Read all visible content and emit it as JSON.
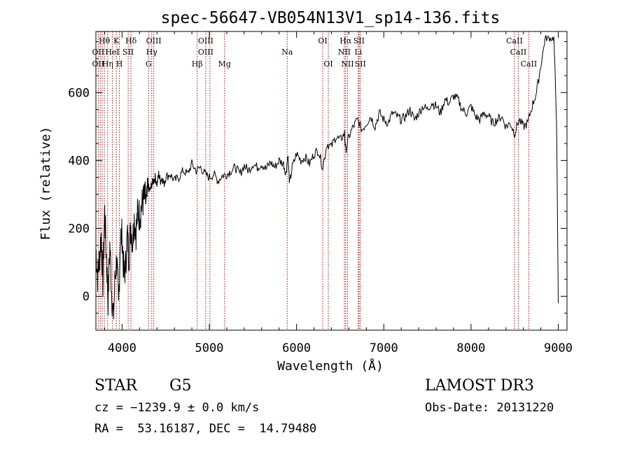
{
  "chart_data": {
    "type": "line",
    "title": "spec-56647-VB054N13V1_sp14-136.fits",
    "xlabel": "Wavelength (Å)",
    "ylabel": "Flux (relative)",
    "xlim": [
      3700,
      9100
    ],
    "ylim": [
      -100,
      780
    ],
    "xticks": [
      4000,
      5000,
      6000,
      7000,
      8000,
      9000
    ],
    "xtick_labels": [
      "4000",
      "5000",
      "6000",
      "7000",
      "8000",
      "9000"
    ],
    "yticks": [
      0,
      200,
      400,
      600
    ],
    "ytick_labels": [
      "0",
      "200",
      "400",
      "600"
    ],
    "grid": false,
    "series": [
      {
        "name": "flux",
        "x": [
          3700,
          3720,
          3740,
          3760,
          3780,
          3800,
          3820,
          3840,
          3860,
          3880,
          3900,
          3920,
          3940,
          3960,
          3980,
          4000,
          4020,
          4040,
          4060,
          4080,
          4100,
          4120,
          4140,
          4160,
          4180,
          4200,
          4220,
          4240,
          4260,
          4280,
          4300,
          4320,
          4340,
          4360,
          4380,
          4400,
          4420,
          4440,
          4460,
          4480,
          4500,
          4550,
          4600,
          4650,
          4700,
          4750,
          4800,
          4850,
          4900,
          4950,
          5000,
          5050,
          5100,
          5150,
          5200,
          5250,
          5300,
          5350,
          5400,
          5450,
          5500,
          5550,
          5600,
          5650,
          5700,
          5750,
          5800,
          5850,
          5880,
          5900,
          5920,
          5950,
          6000,
          6050,
          6100,
          6150,
          6200,
          6250,
          6300,
          6350,
          6400,
          6450,
          6500,
          6550,
          6563,
          6600,
          6650,
          6700,
          6750,
          6800,
          6850,
          6900,
          6950,
          7000,
          7050,
          7100,
          7150,
          7200,
          7250,
          7300,
          7350,
          7400,
          7450,
          7500,
          7550,
          7600,
          7650,
          7700,
          7750,
          7800,
          7850,
          7900,
          7950,
          8000,
          8050,
          8100,
          8150,
          8200,
          8250,
          8300,
          8350,
          8400,
          8450,
          8500,
          8550,
          8600,
          8650,
          8700,
          8750,
          8800,
          8850,
          8900,
          8950,
          8980,
          9000
        ],
        "values": [
          140,
          60,
          110,
          180,
          40,
          250,
          120,
          -10,
          150,
          20,
          -70,
          60,
          110,
          -40,
          170,
          180,
          60,
          90,
          180,
          120,
          210,
          160,
          230,
          190,
          250,
          240,
          260,
          280,
          290,
          270,
          320,
          310,
          330,
          340,
          350,
          330,
          360,
          340,
          350,
          330,
          350,
          360,
          340,
          350,
          370,
          360,
          390,
          370,
          380,
          360,
          350,
          360,
          340,
          355,
          360,
          370,
          380,
          360,
          385,
          370,
          390,
          380,
          390,
          375,
          395,
          380,
          400,
          390,
          360,
          420,
          330,
          380,
          420,
          400,
          410,
          390,
          420,
          430,
          380,
          450,
          440,
          470,
          460,
          480,
          430,
          470,
          500,
          520,
          490,
          510,
          530,
          500,
          540,
          520,
          510,
          540,
          530,
          520,
          530,
          550,
          520,
          540,
          560,
          550,
          570,
          560,
          540,
          580,
          570,
          590,
          580,
          550,
          540,
          560,
          530,
          520,
          540,
          530,
          510,
          520,
          530,
          500,
          510,
          480,
          520,
          500,
          510,
          560,
          600,
          680,
          760,
          760,
          760,
          520,
          -20
        ]
      }
    ],
    "line_identifications": [
      {
        "label": "Hθ",
        "x": 3797,
        "row": 1
      },
      {
        "label": "OII",
        "x": 3727,
        "row": 2
      },
      {
        "label": "OII",
        "x": 3727,
        "row": 3
      },
      {
        "label": "K",
        "x": 3934,
        "row": 1
      },
      {
        "label": "HeI",
        "x": 3889,
        "row": 2
      },
      {
        "label": "Hη",
        "x": 3835,
        "row": 3
      },
      {
        "label": "Hδ",
        "x": 4102,
        "row": 1
      },
      {
        "label": "SII",
        "x": 4070,
        "row": 2
      },
      {
        "label": "H",
        "x": 3969,
        "row": 3
      },
      {
        "label": "OIII",
        "x": 4363,
        "row": 1
      },
      {
        "label": "Hγ",
        "x": 4340,
        "row": 2
      },
      {
        "label": "G",
        "x": 4304,
        "row": 3
      },
      {
        "label": "OIII",
        "x": 4959,
        "row": 1
      },
      {
        "label": "OIII",
        "x": 4959,
        "row": 2
      },
      {
        "label": "Hβ",
        "x": 4861,
        "row": 3
      },
      {
        "label": "Mg",
        "x": 5175,
        "row": 3
      },
      {
        "label": "Na",
        "x": 5893,
        "row": 2
      },
      {
        "label": "OI",
        "x": 6300,
        "row": 1
      },
      {
        "label": "OI",
        "x": 6364,
        "row": 3
      },
      {
        "label": "Hα",
        "x": 6563,
        "row": 1
      },
      {
        "label": "SII",
        "x": 6716,
        "row": 1
      },
      {
        "label": "NII",
        "x": 6548,
        "row": 2
      },
      {
        "label": "Li",
        "x": 6708,
        "row": 2
      },
      {
        "label": "NII",
        "x": 6584,
        "row": 3
      },
      {
        "label": "SII",
        "x": 6731,
        "row": 3
      },
      {
        "label": "CaII",
        "x": 8498,
        "row": 1
      },
      {
        "label": "CaII",
        "x": 8542,
        "row": 2
      },
      {
        "label": "CaII",
        "x": 8662,
        "row": 3
      }
    ],
    "line_marker_x": [
      3727,
      3750,
      3771,
      3797,
      3835,
      3889,
      3934,
      3969,
      4070,
      4102,
      4304,
      4340,
      4363,
      4861,
      4959,
      5007,
      5175,
      5893,
      6300,
      6364,
      6548,
      6563,
      6584,
      6708,
      6716,
      6731,
      8498,
      8542,
      8662
    ]
  },
  "info": {
    "object_class": "STAR",
    "subclass": "G5",
    "survey": "LAMOST DR3",
    "cz_line": "cz = −1239.9 ± 0.0 km/s",
    "obs_date_line": "Obs-Date: 20131220",
    "coords_line": "RA =  53.16187, DEC =  14.79480"
  },
  "colors": {
    "spectrum": "#000000",
    "marker_lines": "#c00000",
    "axes": "#000000"
  }
}
